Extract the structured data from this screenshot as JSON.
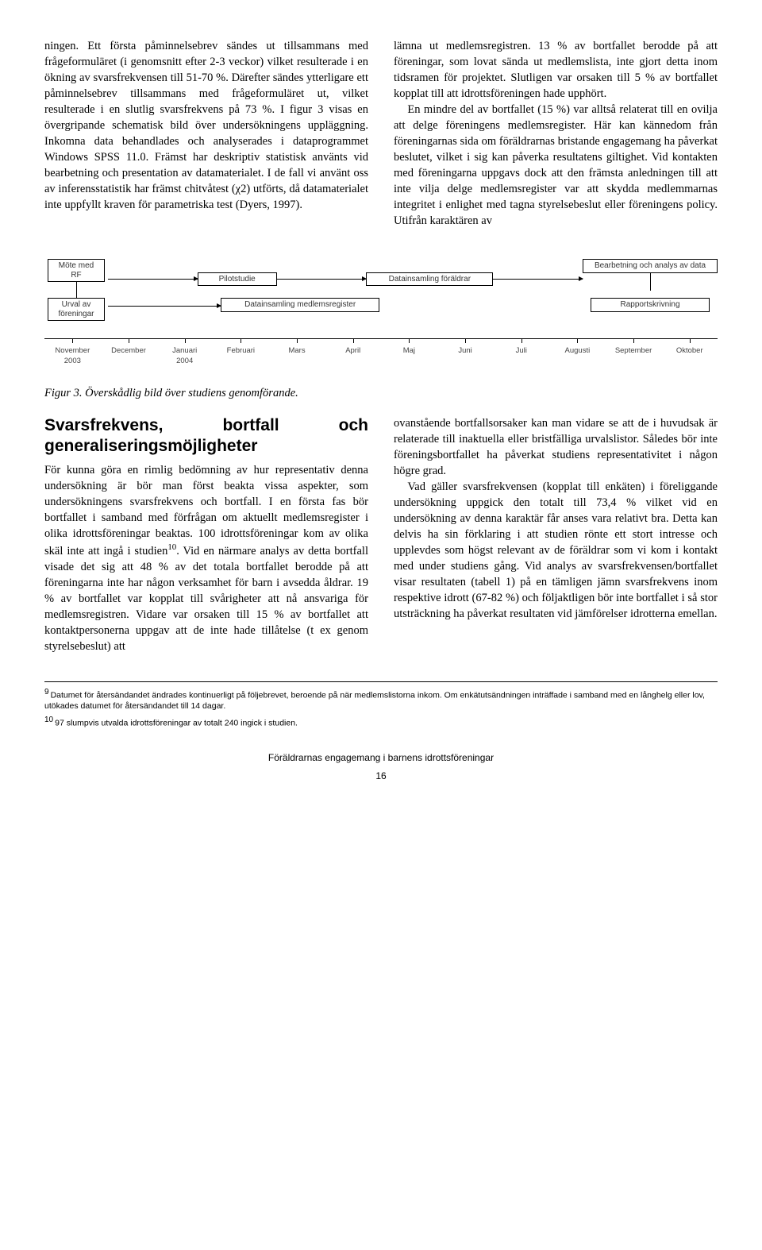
{
  "top": {
    "left_para": "ningen. Ett första påminnelsebrev sändes ut tillsammans med frågeformuläret (i genomsnitt efter 2-3 veckor) vilket resulterade i en ökning av svarsfrekvensen till 51-70 %. Därefter sändes ytterligare ett påminnelsebrev tillsammans med frågeformuläret ut, vilket resulterade i en slutlig svarsfrekvens på 73 %. I figur 3 visas en övergripande schematisk bild över undersökningens uppläggning. Inkomna data behandlades och analyserades i dataprogrammet Windows SPSS 11.0. Främst har deskriptiv statistisk använts vid bearbetning och presentation av datamaterialet. I de fall vi använt oss av inferensstatistik har främst chitvåtest (χ2) utförts, då datamaterialet inte uppfyllt kraven för parametriska test (Dyers, 1997).",
    "right_para": "lämna ut medlemsregistren. 13 % av bortfallet berodde på att föreningar, som lovat sända ut medlemslista, inte gjort detta inom tidsramen för projektet. Slutligen var orsaken till 5 % av bortfallet kopplat till att idrottsföreningen hade upphört.",
    "right_para2": "En mindre del av bortfallet (15 %) var alltså relaterat till en ovilja att delge föreningens medlemsregister. Här kan kännedom från föreningarnas sida om föräldrarnas bristande engagemang ha påverkat beslutet, vilket i sig kan påverka resultatens giltighet. Vid kontakten med föreningarna uppgavs dock att den främsta anledningen till att inte vilja delge medlemsregister var att skydda medlemmarnas integritet i enlighet med tagna styrelsebeslut eller föreningens policy. Utifrån karaktären av"
  },
  "figure": {
    "type": "flowchart-timeline",
    "top_nodes": [
      {
        "label": "Möte med\nRF"
      },
      {
        "label": "Pilotstudie"
      },
      {
        "label": "Datainsamling föräldrar"
      },
      {
        "label": "Bearbetning och analys av data"
      }
    ],
    "mid_nodes": [
      {
        "label": "Urval av\nföreningar"
      },
      {
        "label": "Datainsamling medlemsregister"
      },
      {
        "label": "Rapportskrivning"
      }
    ],
    "months": [
      "November\n2003",
      "December",
      "Januari\n2004",
      "Februari",
      "Mars",
      "April",
      "Maj",
      "Juni",
      "Juli",
      "Augusti",
      "September",
      "Oktober"
    ],
    "caption": "Figur 3. Överskådlig bild över studiens genomförande.",
    "colors": {
      "line": "#000000",
      "box_border": "#000000",
      "box_bg": "#ffffff",
      "text": "#333333"
    },
    "font_size_box": 10,
    "font_size_month": 9.5
  },
  "section2": {
    "heading": "Svarsfrekvens, bortfall och generaliseringsmöjligheter",
    "left_para": "För kunna göra en rimlig bedömning av hur representativ denna undersökning är bör man först beakta vissa aspekter, som undersökningens svarsfrekvens och bortfall. I en första fas bör bortfallet i samband med förfrågan om aktuellt medlemsregister i olika idrottsföreningar beaktas. 100 idrottsföreningar kom av olika skäl inte att ingå i studien",
    "left_sup": "10",
    "left_para_cont": ". Vid en närmare analys av detta bortfall visade det sig att 48 % av det totala bortfallet berodde på att föreningarna inte har någon verksamhet för barn i avsedda åldrar.  19 % av bortfallet var kopplat till svårigheter att nå ansvariga för medlemsregistren. Vidare var orsaken till 15 % av bortfallet att kontaktpersonerna uppgav att de inte hade tillåtelse (t ex genom styrelsebeslut) att",
    "right_para": "ovanstående bortfallsorsaker kan man vidare se att de i huvudsak är relaterade till inaktuella eller bristfälliga urvalslistor. Således bör inte föreningsbortfallet ha påverkat studiens representativitet i någon högre grad.",
    "right_para2": "Vad gäller svarsfrekvensen (kopplat till enkäten) i föreliggande undersökning uppgick den totalt till 73,4 % vilket vid en undersökning av denna karaktär får anses vara relativt bra. Detta kan delvis ha sin förklaring i att studien rönte ett stort intresse och upplevdes som högst relevant av de föräldrar som vi kom i kontakt med under studiens gång. Vid analys av svarsfrekvensen/bortfallet visar resultaten (tabell 1) på en tämligen jämn svarsfrekvens inom respektive idrott (67-82 %) och följaktligen bör inte bortfallet i så stor utsträckning ha påverkat resultaten vid jämförelser idrotterna emellan."
  },
  "footnotes": {
    "fn9": "Datumet för återsändandet ändrades kontinuerligt på följebrevet, beroende på när medlemslistorna inkom. Om enkätutsändningen inträffade i samband med en långhelg eller lov, utökades datumet för återsändandet till 14 dagar.",
    "fn10": "97 slumpvis utvalda idrottsföreningar av totalt 240 ingick i studien."
  },
  "footer": {
    "title": "Föräldrarnas engagemang i barnens idrottsföreningar",
    "page": "16"
  }
}
